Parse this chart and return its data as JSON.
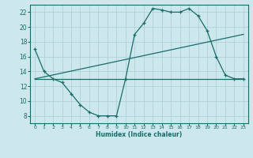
{
  "xlabel": "Humidex (Indice chaleur)",
  "bg_color": "#cce8ec",
  "grid_color": "#b0d0d8",
  "line_color": "#1a6b6b",
  "xlim": [
    -0.5,
    23.5
  ],
  "ylim": [
    7,
    23
  ],
  "yticks": [
    8,
    10,
    12,
    14,
    16,
    18,
    20,
    22
  ],
  "xticks": [
    0,
    1,
    2,
    3,
    4,
    5,
    6,
    7,
    8,
    9,
    10,
    11,
    12,
    13,
    14,
    15,
    16,
    17,
    18,
    19,
    20,
    21,
    22,
    23
  ],
  "main_line_x": [
    0,
    1,
    2,
    3,
    4,
    5,
    6,
    7,
    8,
    9,
    10,
    11,
    12,
    13,
    14,
    15,
    16,
    17,
    18,
    19,
    20,
    21,
    22,
    23
  ],
  "main_line_y": [
    17,
    14,
    13,
    12.5,
    11,
    9.5,
    8.5,
    8,
    8,
    8,
    13,
    19,
    20.5,
    22.5,
    22.3,
    22,
    22,
    22.5,
    21.5,
    19.5,
    16,
    13.5,
    13,
    13
  ],
  "flat_line_x": [
    0,
    23
  ],
  "flat_line_y": [
    13,
    13
  ],
  "rising_line_x": [
    0,
    23
  ],
  "rising_line_y": [
    13,
    19.0
  ]
}
